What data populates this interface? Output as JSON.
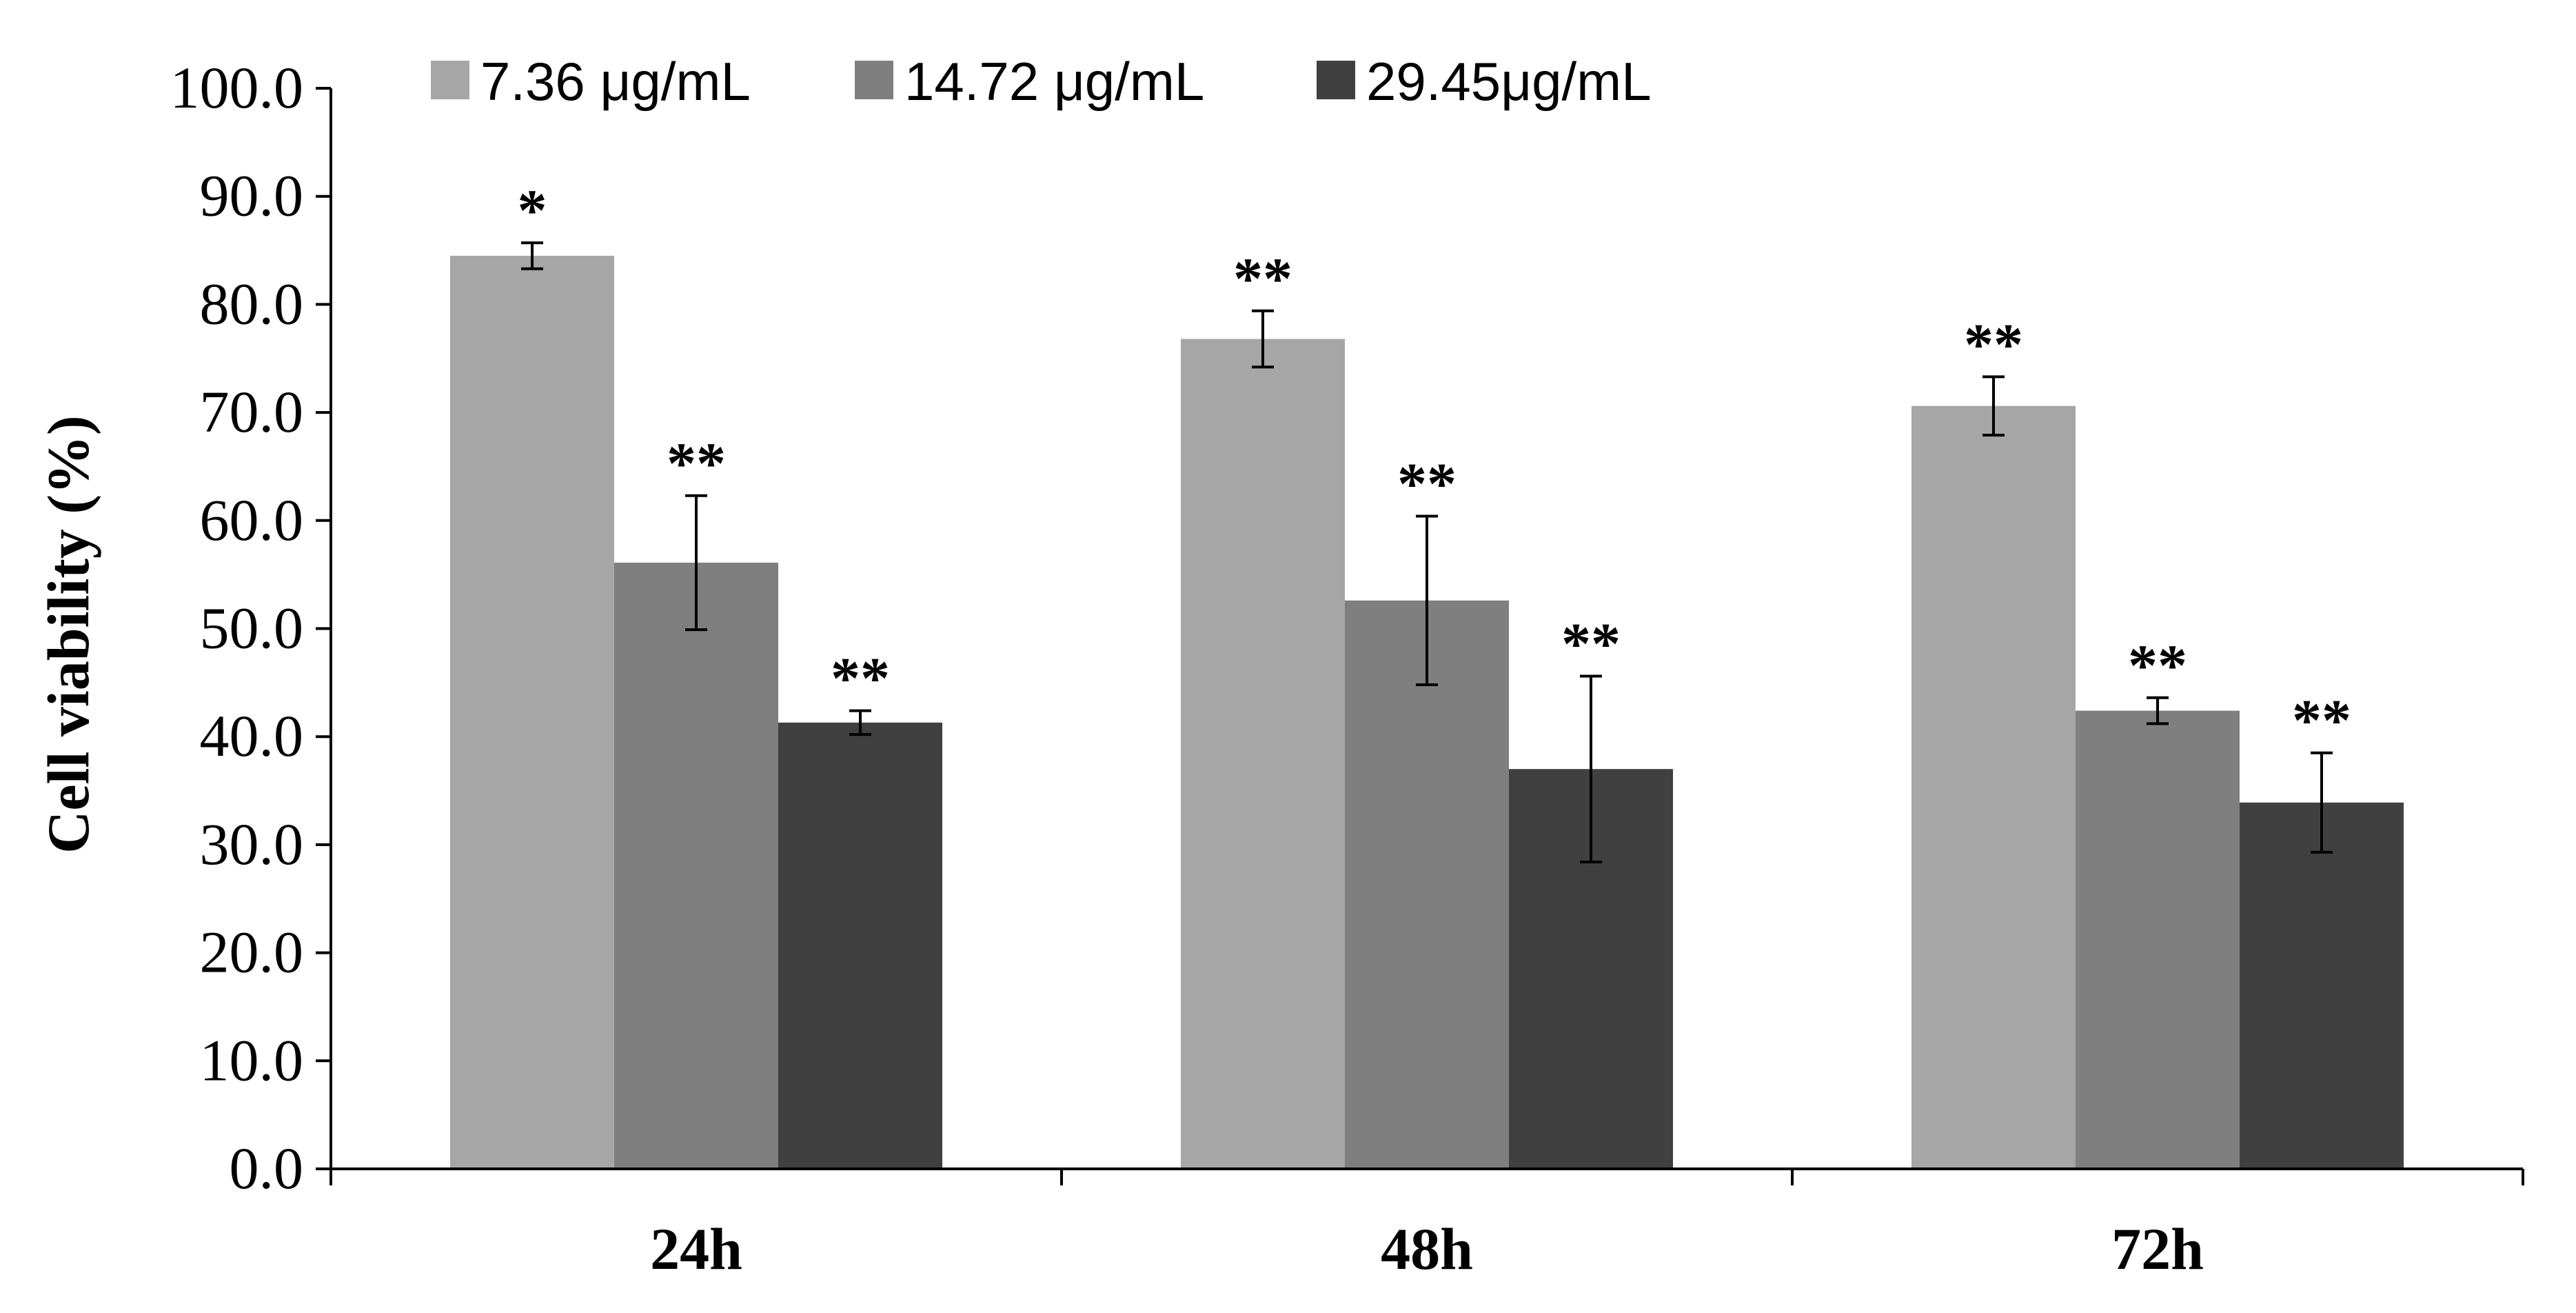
{
  "chart_data": {
    "type": "bar",
    "title": "",
    "xlabel": "",
    "ylabel": "Cell viability (%)",
    "ylim": [
      0,
      100
    ],
    "yticks": [
      "0.0",
      "10.0",
      "20.0",
      "30.0",
      "40.0",
      "50.0",
      "60.0",
      "70.0",
      "80.0",
      "90.0",
      "100.0"
    ],
    "categories": [
      "24h",
      "48h",
      "72h"
    ],
    "legend_position": "top",
    "series": [
      {
        "name": "7.36 μg/mL",
        "color": "#a6a6a6",
        "values": [
          84.5,
          76.8,
          70.6
        ],
        "errors": [
          1.2,
          2.6,
          2.7
        ],
        "significance": [
          "*",
          "**",
          "**"
        ]
      },
      {
        "name": "14.72 μg/mL",
        "color": "#7f7f7f",
        "values": [
          56.1,
          52.6,
          42.4
        ],
        "errors": [
          6.2,
          7.8,
          1.2
        ],
        "significance": [
          "**",
          "**",
          "**"
        ]
      },
      {
        "name": "29.45μg/mL",
        "color": "#404040",
        "values": [
          41.3,
          37.0,
          33.9
        ],
        "errors": [
          1.1,
          8.6,
          4.6
        ],
        "significance": [
          "**",
          "**",
          "**"
        ]
      }
    ]
  }
}
